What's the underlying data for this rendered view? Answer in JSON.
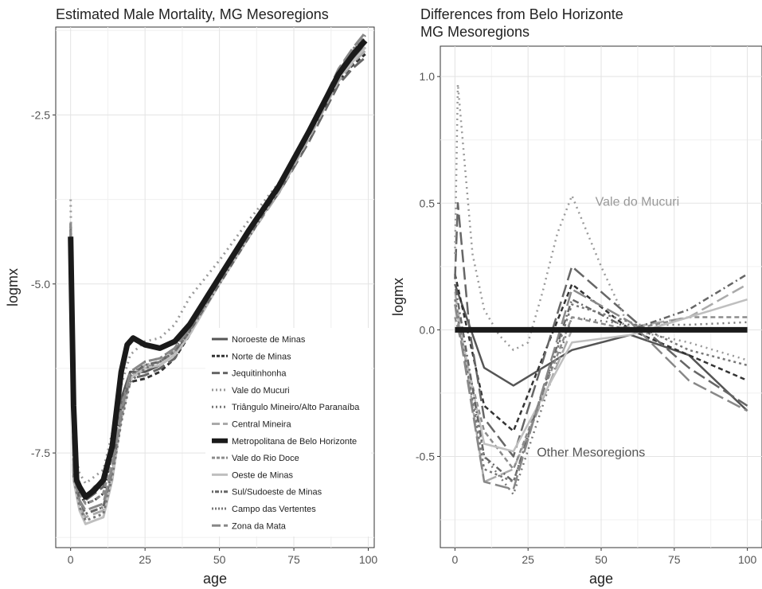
{
  "chart_data": [
    {
      "type": "line",
      "title": "Estimated Male Mortality, MG Mesoregions",
      "xlabel": "age",
      "ylabel": "logmx",
      "xlim": [
        -5,
        102
      ],
      "ylim": [
        -8.9,
        -1.2
      ],
      "xticks": [
        0,
        25,
        50,
        75,
        100
      ],
      "yticks": [
        -2.5,
        -5.0,
        -7.5
      ],
      "ytick_labels": [
        "-2.5",
        "-5.0",
        "-7.5"
      ],
      "grid": true,
      "legend_position": "bottom-right",
      "series": [
        {
          "name": "Noroeste de Minas",
          "color": "#555555",
          "dash": "",
          "width": 3,
          "x": [
            0,
            1,
            3,
            5,
            8,
            11,
            14,
            17,
            20,
            25,
            30,
            35,
            40,
            50,
            60,
            70,
            80,
            90,
            95,
            99
          ],
          "y": [
            -4.3,
            -7.6,
            -8.0,
            -8.15,
            -8.0,
            -7.9,
            -7.4,
            -6.7,
            -6.3,
            -6.3,
            -6.2,
            -6.05,
            -5.7,
            -4.9,
            -4.2,
            -3.55,
            -2.75,
            -1.9,
            -1.65,
            -1.5
          ]
        },
        {
          "name": "Norte de Minas",
          "color": "#333333",
          "dash": "6,4",
          "width": 3,
          "x": [
            0,
            1,
            3,
            5,
            8,
            11,
            14,
            17,
            20,
            25,
            30,
            35,
            40,
            50,
            60,
            70,
            80,
            90,
            95,
            99
          ],
          "y": [
            -4.2,
            -7.7,
            -8.1,
            -8.25,
            -8.2,
            -8.1,
            -7.5,
            -6.85,
            -6.45,
            -6.4,
            -6.3,
            -6.1,
            -5.75,
            -4.95,
            -4.25,
            -3.6,
            -2.8,
            -2.0,
            -1.75,
            -1.6
          ]
        },
        {
          "name": "Jequitinhonha",
          "color": "#666666",
          "dash": "16,6",
          "width": 3,
          "x": [
            0,
            1,
            3,
            5,
            8,
            11,
            14,
            17,
            20,
            25,
            30,
            35,
            40,
            50,
            60,
            70,
            80,
            90,
            95,
            99
          ],
          "y": [
            -4.1,
            -7.65,
            -8.05,
            -8.2,
            -8.1,
            -8.0,
            -7.45,
            -6.8,
            -6.4,
            -6.35,
            -6.25,
            -6.1,
            -5.7,
            -4.95,
            -4.25,
            -3.65,
            -2.9,
            -2.05,
            -1.8,
            -1.65
          ]
        },
        {
          "name": "Vale do Mucuri",
          "color": "#999999",
          "dash": "2,5",
          "width": 3,
          "x": [
            0,
            1,
            3,
            5,
            8,
            11,
            14,
            17,
            20,
            25,
            30,
            35,
            40,
            50,
            60,
            70,
            80,
            90,
            95,
            99
          ],
          "y": [
            -3.75,
            -7.4,
            -7.8,
            -7.95,
            -7.85,
            -7.75,
            -7.2,
            -6.5,
            -6.05,
            -5.85,
            -5.8,
            -5.6,
            -5.2,
            -4.65,
            -4.05,
            -3.5,
            -2.75,
            -1.85,
            -1.55,
            -1.35
          ]
        },
        {
          "name": "Triângulo Mineiro/Alto Paranaíba",
          "color": "#777777",
          "dash": "2,5",
          "width": 3,
          "x": [
            0,
            1,
            3,
            5,
            8,
            11,
            14,
            17,
            20,
            25,
            30,
            35,
            40,
            50,
            60,
            70,
            80,
            90,
            95,
            99
          ],
          "y": [
            -4.15,
            -7.85,
            -8.25,
            -8.4,
            -8.35,
            -8.3,
            -7.75,
            -6.95,
            -6.35,
            -6.15,
            -6.1,
            -5.95,
            -5.65,
            -4.95,
            -4.25,
            -3.6,
            -2.8,
            -1.95,
            -1.7,
            -1.5
          ]
        },
        {
          "name": "Central Mineira",
          "color": "#aaaaaa",
          "dash": "16,6",
          "width": 3,
          "x": [
            0,
            1,
            3,
            5,
            8,
            11,
            14,
            17,
            20,
            25,
            30,
            35,
            40,
            50,
            60,
            70,
            80,
            90,
            95,
            99
          ],
          "y": [
            -4.2,
            -7.9,
            -8.3,
            -8.45,
            -8.4,
            -8.35,
            -7.8,
            -7.0,
            -6.4,
            -6.2,
            -6.15,
            -6.0,
            -5.7,
            -5.0,
            -4.3,
            -3.65,
            -2.85,
            -2.0,
            -1.72,
            -1.55
          ]
        },
        {
          "name": "Metropolitana de Belo Horizonte",
          "color": "#1a1a1a",
          "dash": "",
          "width": 7,
          "x": [
            0,
            1,
            2,
            3,
            5,
            8,
            11,
            14,
            17,
            19,
            21,
            23,
            25,
            30,
            35,
            40,
            50,
            60,
            70,
            80,
            90,
            95,
            99
          ],
          "y": [
            -4.3,
            -6.8,
            -7.9,
            -8.0,
            -8.15,
            -8.05,
            -7.9,
            -7.4,
            -6.3,
            -5.9,
            -5.8,
            -5.85,
            -5.9,
            -5.95,
            -5.85,
            -5.6,
            -4.9,
            -4.2,
            -3.55,
            -2.75,
            -1.9,
            -1.6,
            -1.4
          ]
        },
        {
          "name": "Vale do Rio Doce",
          "color": "#8c8c8c",
          "dash": "6,4",
          "width": 3,
          "x": [
            0,
            1,
            3,
            5,
            8,
            11,
            14,
            17,
            20,
            25,
            30,
            35,
            40,
            50,
            60,
            70,
            80,
            90,
            95,
            99
          ],
          "y": [
            -4.1,
            -7.7,
            -8.1,
            -8.25,
            -8.2,
            -8.1,
            -7.55,
            -6.8,
            -6.35,
            -6.25,
            -6.15,
            -5.95,
            -5.6,
            -4.9,
            -4.2,
            -3.55,
            -2.8,
            -1.9,
            -1.62,
            -1.42
          ]
        },
        {
          "name": "Oeste de Minas",
          "color": "#bfbfbf",
          "dash": "",
          "width": 3,
          "x": [
            0,
            1,
            3,
            5,
            8,
            11,
            14,
            17,
            20,
            25,
            30,
            35,
            40,
            50,
            60,
            70,
            80,
            90,
            95,
            99
          ],
          "y": [
            -4.2,
            -7.9,
            -8.35,
            -8.55,
            -8.5,
            -8.45,
            -7.9,
            -7.0,
            -6.4,
            -6.25,
            -6.2,
            -6.05,
            -5.75,
            -5.0,
            -4.3,
            -3.6,
            -2.8,
            -1.95,
            -1.7,
            -1.5
          ]
        },
        {
          "name": "Sul/Sudoeste de Minas",
          "color": "#666666",
          "dash": "2,4,8,4",
          "width": 3,
          "x": [
            0,
            1,
            3,
            5,
            8,
            11,
            14,
            17,
            20,
            25,
            30,
            35,
            40,
            50,
            60,
            70,
            80,
            90,
            95,
            99
          ],
          "y": [
            -4.2,
            -7.8,
            -8.2,
            -8.4,
            -8.35,
            -8.3,
            -7.75,
            -6.95,
            -6.35,
            -6.2,
            -6.15,
            -6.0,
            -5.7,
            -5.0,
            -4.3,
            -3.6,
            -2.75,
            -1.85,
            -1.55,
            -1.35
          ]
        },
        {
          "name": "Campo das Vertentes",
          "color": "#777777",
          "dash": "3,4",
          "width": 3,
          "x": [
            0,
            1,
            3,
            5,
            8,
            11,
            14,
            17,
            20,
            25,
            30,
            35,
            40,
            50,
            60,
            70,
            80,
            90,
            95,
            99
          ],
          "y": [
            -4.2,
            -7.85,
            -8.3,
            -8.5,
            -8.45,
            -8.4,
            -7.85,
            -7.05,
            -6.45,
            -6.25,
            -6.15,
            -6.0,
            -5.7,
            -4.95,
            -4.25,
            -3.55,
            -2.75,
            -1.85,
            -1.52,
            -1.32
          ]
        },
        {
          "name": "Zona da Mata",
          "color": "#888888",
          "dash": "18,6",
          "width": 3,
          "x": [
            0,
            1,
            3,
            5,
            8,
            11,
            14,
            17,
            20,
            25,
            30,
            35,
            40,
            50,
            60,
            70,
            80,
            90,
            95,
            99
          ],
          "y": [
            -4.2,
            -7.8,
            -8.2,
            -8.35,
            -8.3,
            -8.25,
            -7.7,
            -6.9,
            -6.3,
            -6.15,
            -6.1,
            -5.95,
            -5.65,
            -4.95,
            -4.25,
            -3.55,
            -2.75,
            -1.82,
            -1.5,
            -1.28
          ]
        }
      ]
    },
    {
      "type": "line",
      "title": "Differences from Belo Horizonte",
      "subtitle": "MG Mesoregions",
      "xlabel": "age",
      "ylabel": "logmx",
      "xlim": [
        -5,
        105
      ],
      "ylim": [
        -0.86,
        1.12
      ],
      "xticks": [
        0,
        25,
        50,
        75,
        100
      ],
      "yticks": [
        1.0,
        0.5,
        0.0,
        -0.5
      ],
      "ytick_labels": [
        "1.0",
        "0.5",
        "0.0",
        "-0.5"
      ],
      "grid": true,
      "annotations": [
        {
          "text": "Vale do Mucuri",
          "x": 48,
          "y": 0.49,
          "color": "#999999"
        },
        {
          "text": "Other Mesoregions",
          "x": 28,
          "y": -0.5,
          "color": "#555555"
        }
      ],
      "series": [
        {
          "name": "Noroeste de Minas",
          "color": "#555555",
          "dash": "",
          "width": 2.5,
          "x": [
            0,
            10,
            20,
            40,
            60,
            80,
            100
          ],
          "y": [
            0.18,
            -0.15,
            -0.22,
            -0.08,
            -0.02,
            -0.1,
            -0.32
          ]
        },
        {
          "name": "Norte de Minas",
          "color": "#333333",
          "dash": "6,4",
          "width": 2.5,
          "x": [
            0,
            10,
            20,
            40,
            60,
            80,
            100
          ],
          "y": [
            0.22,
            -0.3,
            -0.4,
            0.18,
            0.0,
            -0.1,
            -0.2
          ]
        },
        {
          "name": "Jequitinhonha",
          "color": "#666666",
          "dash": "16,6",
          "width": 2.5,
          "x": [
            0,
            1,
            5,
            10,
            20,
            40,
            60,
            80,
            100
          ],
          "y": [
            0.2,
            0.5,
            0.0,
            -0.35,
            -0.5,
            0.25,
            0.05,
            -0.15,
            -0.3
          ]
        },
        {
          "name": "Vale do Mucuri",
          "color": "#999999",
          "dash": "2,5",
          "width": 2.5,
          "x": [
            0,
            1,
            3,
            6,
            10,
            15,
            20,
            25,
            30,
            35,
            40,
            50,
            60,
            80,
            100
          ],
          "y": [
            0.3,
            0.97,
            0.7,
            0.3,
            0.08,
            -0.02,
            -0.08,
            -0.05,
            0.15,
            0.38,
            0.53,
            0.25,
            0.0,
            -0.05,
            -0.12
          ]
        },
        {
          "name": "Triângulo Mineiro/Alto Paranaíba",
          "color": "#777777",
          "dash": "2,5",
          "width": 2.5,
          "x": [
            0,
            10,
            20,
            40,
            60,
            80,
            100
          ],
          "y": [
            0.1,
            -0.5,
            -0.65,
            0.05,
            0.02,
            0.02,
            0.03
          ]
        },
        {
          "name": "Central Mineira",
          "color": "#aaaaaa",
          "dash": "16,6",
          "width": 2.5,
          "x": [
            0,
            10,
            20,
            40,
            60,
            80,
            100
          ],
          "y": [
            0.15,
            -0.6,
            -0.55,
            0.0,
            0.01,
            0.05,
            0.18
          ]
        },
        {
          "name": "Metropolitana de Belo Horizonte",
          "color": "#1a1a1a",
          "dash": "",
          "width": 7,
          "x": [
            0,
            100
          ],
          "y": [
            0.0,
            0.0
          ]
        },
        {
          "name": "Vale do Rio Doce",
          "color": "#8c8c8c",
          "dash": "6,4",
          "width": 2.5,
          "x": [
            0,
            10,
            20,
            40,
            60,
            80,
            100
          ],
          "y": [
            0.05,
            -0.4,
            -0.55,
            0.05,
            0.0,
            0.05,
            0.05
          ]
        },
        {
          "name": "Oeste de Minas",
          "color": "#bfbfbf",
          "dash": "",
          "width": 2.5,
          "x": [
            0,
            10,
            20,
            40,
            60,
            80,
            100
          ],
          "y": [
            0.1,
            -0.45,
            -0.48,
            -0.05,
            -0.02,
            0.05,
            0.12
          ]
        },
        {
          "name": "Sul/Sudoeste de Minas",
          "color": "#666666",
          "dash": "2,4,8,4",
          "width": 2.5,
          "x": [
            0,
            10,
            20,
            40,
            60,
            80,
            100
          ],
          "y": [
            0.18,
            -0.5,
            -0.6,
            0.12,
            0.0,
            0.08,
            0.22
          ]
        },
        {
          "name": "Campo das Vertentes",
          "color": "#777777",
          "dash": "3,4",
          "width": 2.5,
          "x": [
            0,
            10,
            20,
            40,
            60,
            80,
            100
          ],
          "y": [
            0.12,
            -0.55,
            -0.6,
            0.1,
            0.03,
            -0.08,
            -0.14
          ]
        },
        {
          "name": "Zona da Mata",
          "color": "#888888",
          "dash": "18,6",
          "width": 2.5,
          "x": [
            0,
            10,
            20,
            40,
            60,
            80,
            100
          ],
          "y": [
            0.1,
            -0.6,
            -0.63,
            0.16,
            0.03,
            -0.2,
            -0.32
          ]
        }
      ]
    }
  ]
}
